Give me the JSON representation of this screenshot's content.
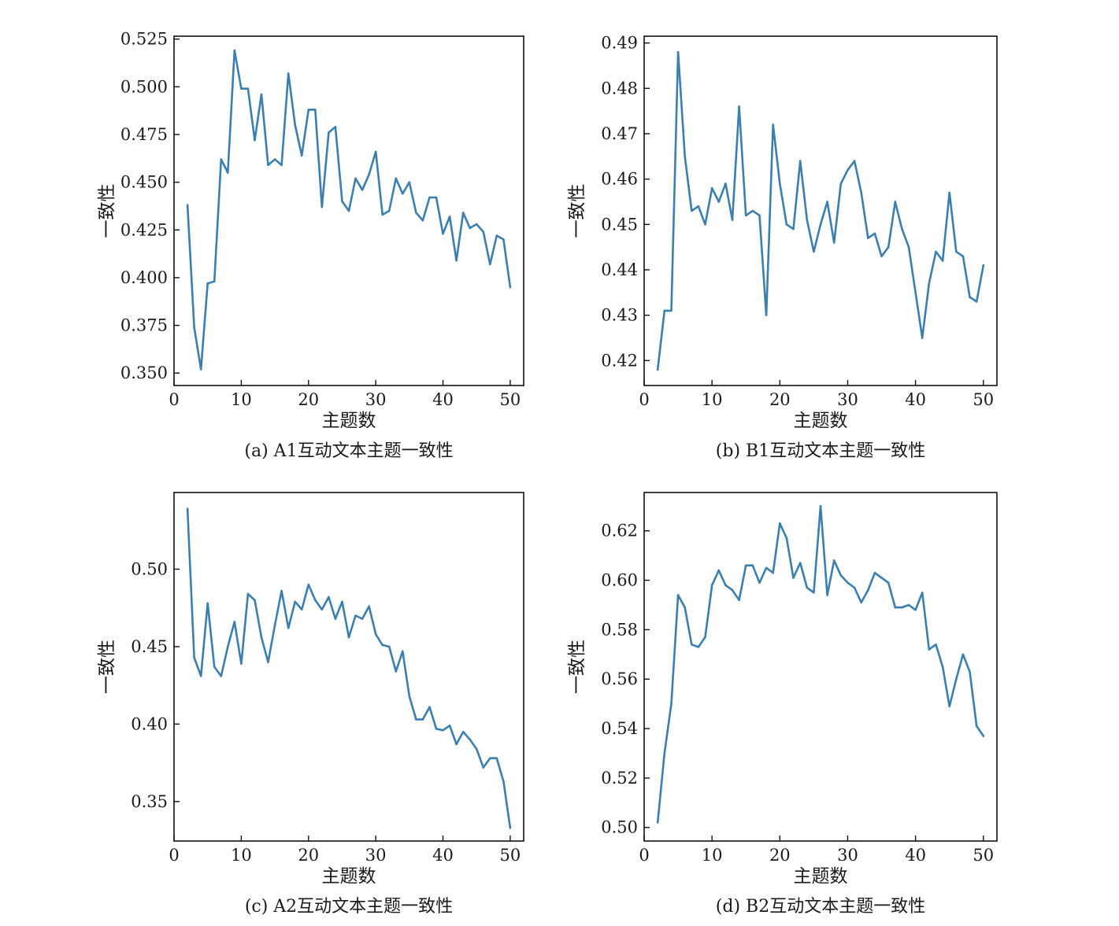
{
  "chart_data": [
    {
      "type": "line",
      "caption": "(a) A1互动文本主题一致性",
      "xlabel": "主题数",
      "ylabel": "一致性",
      "xlim": [
        0,
        52
      ],
      "ylim": [
        0.3435,
        0.5265
      ],
      "xticks": [
        0,
        10,
        20,
        30,
        40,
        50
      ],
      "yticks": [
        0.35,
        0.375,
        0.4,
        0.425,
        0.45,
        0.475,
        0.5,
        0.525
      ],
      "ytick_labels": [
        "0.350",
        "0.375",
        "0.400",
        "0.425",
        "0.450",
        "0.475",
        "0.500",
        "0.525"
      ],
      "color": "#3a7fb0",
      "series": [
        {
          "x": [
            2,
            3,
            4,
            5,
            6,
            7,
            8,
            9,
            10,
            11,
            12,
            13,
            14,
            15,
            16,
            17,
            18,
            19,
            20,
            21,
            22,
            23,
            24,
            25,
            26,
            27,
            28,
            29,
            30,
            31,
            32,
            33,
            34,
            35,
            36,
            37,
            38,
            39,
            40,
            41,
            42,
            43,
            44,
            45,
            46,
            47,
            48,
            49,
            50
          ],
          "values": [
            0.438,
            0.374,
            0.352,
            0.397,
            0.398,
            0.462,
            0.455,
            0.519,
            0.499,
            0.499,
            0.472,
            0.496,
            0.459,
            0.462,
            0.459,
            0.507,
            0.48,
            0.464,
            0.488,
            0.488,
            0.437,
            0.476,
            0.479,
            0.44,
            0.435,
            0.452,
            0.446,
            0.454,
            0.466,
            0.433,
            0.435,
            0.452,
            0.444,
            0.45,
            0.434,
            0.43,
            0.442,
            0.442,
            0.423,
            0.432,
            0.409,
            0.434,
            0.426,
            0.428,
            0.424,
            0.407,
            0.422,
            0.42,
            0.395
          ]
        }
      ]
    },
    {
      "type": "line",
      "caption": "(b) B1互动文本主题一致性",
      "xlabel": "主题数",
      "ylabel": "一致性",
      "xlim": [
        0,
        52
      ],
      "ylim": [
        0.4145,
        0.4915
      ],
      "xticks": [
        0,
        10,
        20,
        30,
        40,
        50
      ],
      "yticks": [
        0.42,
        0.43,
        0.44,
        0.45,
        0.46,
        0.47,
        0.48,
        0.49
      ],
      "ytick_labels": [
        "0.42",
        "0.43",
        "0.44",
        "0.45",
        "0.46",
        "0.47",
        "0.48",
        "0.49"
      ],
      "color": "#3a7fb0",
      "series": [
        {
          "x": [
            2,
            3,
            4,
            5,
            6,
            7,
            8,
            9,
            10,
            11,
            12,
            13,
            14,
            15,
            16,
            17,
            18,
            19,
            20,
            21,
            22,
            23,
            24,
            25,
            26,
            27,
            28,
            29,
            30,
            31,
            32,
            33,
            34,
            35,
            36,
            37,
            38,
            39,
            40,
            41,
            42,
            43,
            44,
            45,
            46,
            47,
            48,
            49,
            50
          ],
          "values": [
            0.418,
            0.431,
            0.431,
            0.488,
            0.465,
            0.453,
            0.454,
            0.45,
            0.458,
            0.455,
            0.459,
            0.451,
            0.476,
            0.452,
            0.453,
            0.452,
            0.43,
            0.472,
            0.459,
            0.45,
            0.449,
            0.464,
            0.451,
            0.444,
            0.45,
            0.455,
            0.446,
            0.459,
            0.462,
            0.464,
            0.457,
            0.447,
            0.448,
            0.443,
            0.445,
            0.455,
            0.449,
            0.445,
            0.435,
            0.425,
            0.437,
            0.444,
            0.442,
            0.457,
            0.444,
            0.443,
            0.434,
            0.433,
            0.441
          ]
        }
      ]
    },
    {
      "type": "line",
      "caption": "(c) A2互动文本主题一致性",
      "xlabel": "主题数",
      "ylabel": "一致性",
      "xlim": [
        0,
        52
      ],
      "ylim": [
        0.3245,
        0.5495
      ],
      "xticks": [
        0,
        10,
        20,
        30,
        40,
        50
      ],
      "yticks": [
        0.35,
        0.4,
        0.45,
        0.5
      ],
      "ytick_labels": [
        "0.35",
        "0.40",
        "0.45",
        "0.50"
      ],
      "color": "#3a7fb0",
      "series": [
        {
          "x": [
            2,
            3,
            4,
            5,
            6,
            7,
            8,
            9,
            10,
            11,
            12,
            13,
            14,
            15,
            16,
            17,
            18,
            19,
            20,
            21,
            22,
            23,
            24,
            25,
            26,
            27,
            28,
            29,
            30,
            31,
            32,
            33,
            34,
            35,
            36,
            37,
            38,
            39,
            40,
            41,
            42,
            43,
            44,
            45,
            46,
            47,
            48,
            49,
            50
          ],
          "values": [
            0.539,
            0.443,
            0.431,
            0.478,
            0.437,
            0.431,
            0.45,
            0.466,
            0.439,
            0.484,
            0.48,
            0.456,
            0.44,
            0.464,
            0.486,
            0.462,
            0.479,
            0.474,
            0.49,
            0.48,
            0.474,
            0.482,
            0.468,
            0.479,
            0.456,
            0.47,
            0.468,
            0.476,
            0.458,
            0.451,
            0.45,
            0.434,
            0.447,
            0.418,
            0.403,
            0.403,
            0.411,
            0.397,
            0.396,
            0.399,
            0.387,
            0.395,
            0.39,
            0.384,
            0.372,
            0.378,
            0.378,
            0.363,
            0.333
          ]
        }
      ]
    },
    {
      "type": "line",
      "caption": "(d) B2互动文本主题一致性",
      "xlabel": "主题数",
      "ylabel": "一致性",
      "xlim": [
        0,
        52
      ],
      "ylim": [
        0.4945,
        0.6355
      ],
      "xticks": [
        0,
        10,
        20,
        30,
        40,
        50
      ],
      "yticks": [
        0.5,
        0.52,
        0.54,
        0.56,
        0.58,
        0.6,
        0.62
      ],
      "ytick_labels": [
        "0.50",
        "0.52",
        "0.54",
        "0.56",
        "0.58",
        "0.60",
        "0.62"
      ],
      "color": "#3a7fb0",
      "series": [
        {
          "x": [
            2,
            3,
            4,
            5,
            6,
            7,
            8,
            9,
            10,
            11,
            12,
            13,
            14,
            15,
            16,
            17,
            18,
            19,
            20,
            21,
            22,
            23,
            24,
            25,
            26,
            27,
            28,
            29,
            30,
            31,
            32,
            33,
            34,
            35,
            36,
            37,
            38,
            39,
            40,
            41,
            42,
            43,
            44,
            45,
            46,
            47,
            48,
            49,
            50
          ],
          "values": [
            0.502,
            0.53,
            0.55,
            0.594,
            0.589,
            0.574,
            0.573,
            0.577,
            0.598,
            0.604,
            0.598,
            0.596,
            0.592,
            0.606,
            0.606,
            0.599,
            0.605,
            0.603,
            0.623,
            0.617,
            0.601,
            0.607,
            0.597,
            0.595,
            0.63,
            0.594,
            0.608,
            0.602,
            0.599,
            0.597,
            0.591,
            0.596,
            0.603,
            0.601,
            0.599,
            0.589,
            0.589,
            0.59,
            0.588,
            0.595,
            0.572,
            0.574,
            0.565,
            0.549,
            0.56,
            0.57,
            0.563,
            0.541,
            0.537
          ]
        }
      ]
    }
  ]
}
